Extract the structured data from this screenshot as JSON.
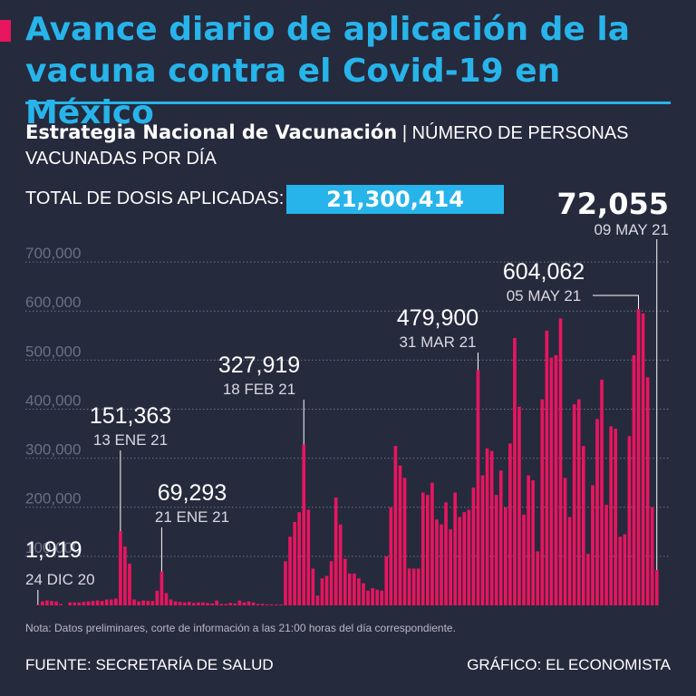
{
  "header": {
    "title": "Avance diario de aplicación de la vacuna contra el Covid-19 en México",
    "subtitle_strong": "Estrategia Nacional de Vacunación",
    "subtitle_light": " | NÚMERO DE PERSONAS VACUNADAS POR DÍA",
    "total_label": "TOTAL DE DOSIS APLICADAS:",
    "total_value": "21,300,414"
  },
  "latest": {
    "value": "72,055",
    "date": "09 MAY 21"
  },
  "footer": {
    "note": "Nota: Datos preliminares, corte de información a las 21:00 horas del día correspondiente.",
    "source": "FUENTE: SECRETARÍA DE SALUD",
    "credit": "GRÁFICO: EL ECONOMISTA"
  },
  "colors": {
    "bar": "#e8155f",
    "accent": "#27b4ea",
    "background": "#262a3d",
    "grid": "#6f7489"
  },
  "chart_data": {
    "type": "bar",
    "title": "Número de personas vacunadas por día",
    "xlabel": "",
    "ylabel": "",
    "ylim": [
      0,
      750000
    ],
    "yticks": [
      100000,
      200000,
      300000,
      400000,
      500000,
      600000,
      700000
    ],
    "ytick_labels": [
      "100,000",
      "200,000",
      "300,000",
      "400,000",
      "500,000",
      "600,000",
      "700,000"
    ],
    "first_date": "24 DIC 20",
    "last_date": "09 MAY 21",
    "values": [
      1919,
      8000,
      10000,
      9000,
      8000,
      3000,
      0,
      6000,
      6000,
      6000,
      7000,
      8000,
      9000,
      10000,
      9000,
      12000,
      12000,
      14000,
      151363,
      120000,
      85000,
      12000,
      8000,
      10000,
      9000,
      9000,
      30000,
      69293,
      25000,
      12000,
      8000,
      7000,
      6000,
      7000,
      5000,
      6000,
      6000,
      5000,
      4000,
      10000,
      3000,
      3000,
      5000,
      4000,
      10000,
      6000,
      8000,
      6000,
      3000,
      3000,
      2000,
      2000,
      1000,
      1000,
      90000,
      140000,
      170000,
      190000,
      327919,
      195000,
      75000,
      20000,
      55000,
      60000,
      90000,
      220000,
      165000,
      95000,
      65000,
      65000,
      55000,
      45000,
      30000,
      35000,
      32000,
      30000,
      100000,
      200000,
      325000,
      285000,
      260000,
      75000,
      75000,
      75000,
      230000,
      225000,
      250000,
      175000,
      165000,
      210000,
      155000,
      230000,
      180000,
      190000,
      195000,
      240000,
      479900,
      265000,
      320000,
      315000,
      225000,
      275000,
      200000,
      330000,
      545000,
      405000,
      185000,
      265000,
      255000,
      110000,
      420000,
      560000,
      505000,
      510000,
      585000,
      260000,
      180000,
      410000,
      420000,
      325000,
      105000,
      245000,
      380000,
      460000,
      205000,
      365000,
      360000,
      140000,
      145000,
      345000,
      510000,
      604062,
      595000,
      465000,
      200000,
      72055
    ],
    "annotations": [
      {
        "index": 0,
        "value": "1,919",
        "date": "24 DIC 20"
      },
      {
        "index": 18,
        "value": "151,363",
        "date": "13 ENE 21"
      },
      {
        "index": 27,
        "value": "69,293",
        "date": "21 ENE 21"
      },
      {
        "index": 58,
        "value": "327,919",
        "date": "18 FEB 21"
      },
      {
        "index": 96,
        "value": "479,900",
        "date": "31 MAR 21"
      },
      {
        "index": 131,
        "value": "604,062",
        "date": "05 MAY 21"
      },
      {
        "index": 135,
        "value": "72,055",
        "date": "09 MAY 21"
      }
    ]
  }
}
